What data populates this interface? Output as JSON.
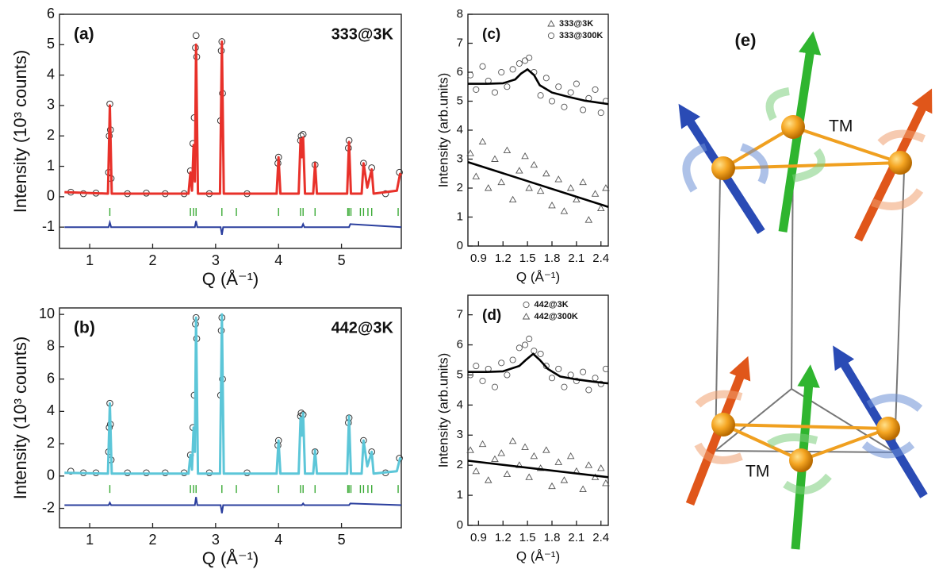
{
  "chart_data": [
    {
      "type": "rietveld",
      "panel_label": "(a)",
      "annotation": "333@3K",
      "x_label": "Q (Å⁻¹)",
      "y_label": "Intensity (10³ counts)",
      "xlim": [
        0.52,
        5.95
      ],
      "ylim": [
        -1.7,
        6
      ],
      "xticks": [
        1,
        2,
        3,
        4,
        5
      ],
      "yticks": [
        -1,
        0,
        1,
        2,
        3,
        4,
        5,
        6
      ],
      "calculated": {
        "color": "#e8312a",
        "x": [
          0.6,
          1.29,
          1.32,
          1.35,
          2.57,
          2.6,
          2.625,
          2.65,
          2.67,
          2.69,
          2.72,
          3.07,
          3.1,
          3.13,
          3.97,
          4.0,
          4.03,
          4.32,
          4.35,
          4.37,
          4.39,
          4.42,
          4.55,
          4.58,
          4.61,
          5.09,
          5.12,
          5.15,
          5.32,
          5.35,
          5.41,
          5.48,
          5.51,
          5.88,
          5.93,
          5.95
        ],
        "values": [
          0.15,
          0.1,
          3.0,
          0.1,
          0.1,
          0.8,
          0.2,
          1.7,
          0.5,
          5.0,
          0.1,
          0.1,
          5.1,
          0.1,
          0.1,
          1.3,
          0.1,
          0.1,
          1.9,
          1.3,
          1.95,
          0.1,
          0.1,
          1.1,
          0.1,
          0.1,
          1.8,
          0.1,
          0.1,
          1.1,
          0.3,
          0.9,
          0.1,
          0.2,
          0.75,
          0.7
        ]
      },
      "observed": {
        "color": "#333333",
        "x": [
          0.7,
          0.9,
          1.1,
          1.3,
          1.31,
          1.32,
          1.33,
          1.34,
          1.6,
          1.9,
          2.2,
          2.5,
          2.6,
          2.64,
          2.66,
          2.68,
          2.69,
          2.7,
          2.9,
          3.08,
          3.09,
          3.1,
          3.11,
          3.5,
          3.99,
          4.0,
          4.35,
          4.36,
          4.39,
          4.58,
          5.11,
          5.12,
          5.35,
          5.48,
          5.7,
          5.92
        ],
        "values": [
          0.15,
          0.1,
          0.12,
          0.8,
          2.0,
          3.05,
          2.2,
          0.6,
          0.1,
          0.12,
          0.1,
          0.1,
          0.85,
          1.75,
          2.6,
          4.9,
          5.3,
          4.6,
          0.1,
          2.5,
          4.8,
          5.1,
          3.4,
          0.1,
          1.1,
          1.3,
          1.85,
          2.0,
          2.05,
          1.05,
          1.6,
          1.85,
          1.1,
          0.95,
          0.1,
          0.8
        ]
      },
      "bragg": {
        "color": "#3aaa35",
        "y": -0.5,
        "x": [
          1.32,
          2.6,
          2.65,
          2.69,
          3.1,
          3.33,
          4.0,
          4.35,
          4.39,
          4.58,
          5.1,
          5.12,
          5.15,
          5.3,
          5.35,
          5.42,
          5.48,
          5.9
        ]
      },
      "difference": {
        "color": "#2b3f9e",
        "x": [
          0.6,
          1.3,
          1.32,
          1.34,
          2.67,
          2.69,
          2.71,
          3.08,
          3.1,
          3.12,
          4.37,
          4.39,
          4.41,
          5.12,
          5.14,
          5.95
        ],
        "values": [
          -1,
          -1,
          -0.85,
          -1,
          -1,
          -0.8,
          -1,
          -1,
          -1.25,
          -1,
          -1,
          -0.9,
          -1,
          -1,
          -0.9,
          -1
        ]
      }
    },
    {
      "type": "rietveld",
      "panel_label": "(b)",
      "annotation": "442@3K",
      "x_label": "Q (Å⁻¹)",
      "y_label": "Intensity (10³ counts)",
      "xlim": [
        0.52,
        5.95
      ],
      "ylim": [
        -3.2,
        10.4
      ],
      "xticks": [
        1,
        2,
        3,
        4,
        5
      ],
      "yticks": [
        -2,
        0,
        2,
        4,
        6,
        8,
        10
      ],
      "calculated": {
        "color": "#5cc6d8",
        "x": [
          0.6,
          1.29,
          1.32,
          1.35,
          2.57,
          2.6,
          2.625,
          2.65,
          2.67,
          2.69,
          2.72,
          3.07,
          3.1,
          3.13,
          3.97,
          4.0,
          4.03,
          4.32,
          4.35,
          4.37,
          4.39,
          4.42,
          4.55,
          4.58,
          4.61,
          5.09,
          5.12,
          5.15,
          5.32,
          5.35,
          5.41,
          5.48,
          5.51,
          5.88,
          5.93,
          5.95
        ],
        "values": [
          0.2,
          0.15,
          4.5,
          0.15,
          0.15,
          1.3,
          0.4,
          3.0,
          1.5,
          9.8,
          0.15,
          0.15,
          10.0,
          0.15,
          0.15,
          2.2,
          0.15,
          0.15,
          3.6,
          2.5,
          3.9,
          0.15,
          0.15,
          1.6,
          0.15,
          0.15,
          3.7,
          0.15,
          0.15,
          2.2,
          0.6,
          1.5,
          0.15,
          0.3,
          1.1,
          1.0
        ]
      },
      "observed": {
        "color": "#333333",
        "x": [
          0.7,
          0.9,
          1.1,
          1.3,
          1.31,
          1.32,
          1.33,
          1.34,
          1.6,
          1.9,
          2.2,
          2.5,
          2.6,
          2.64,
          2.66,
          2.68,
          2.69,
          2.7,
          2.9,
          3.08,
          3.09,
          3.1,
          3.11,
          3.5,
          3.99,
          4.0,
          4.35,
          4.36,
          4.39,
          4.58,
          5.11,
          5.12,
          5.35,
          5.48,
          5.7,
          5.92
        ],
        "values": [
          0.3,
          0.2,
          0.2,
          1.5,
          3.0,
          4.5,
          3.2,
          1.0,
          0.2,
          0.2,
          0.2,
          0.2,
          1.3,
          3.0,
          5.0,
          9.4,
          9.8,
          8.5,
          0.2,
          5.0,
          9.0,
          9.8,
          6.0,
          0.2,
          1.9,
          2.2,
          3.7,
          3.9,
          3.8,
          1.5,
          3.3,
          3.6,
          2.2,
          1.5,
          0.2,
          1.1
        ]
      },
      "bragg": {
        "color": "#3aaa35",
        "y": -0.8,
        "x": [
          1.32,
          2.6,
          2.65,
          2.69,
          3.1,
          3.33,
          4.0,
          4.35,
          4.39,
          4.58,
          5.1,
          5.12,
          5.15,
          5.3,
          5.35,
          5.42,
          5.48,
          5.9
        ]
      },
      "difference": {
        "color": "#2b3f9e",
        "x": [
          0.6,
          1.3,
          1.32,
          1.34,
          2.67,
          2.69,
          2.71,
          3.08,
          3.1,
          3.12,
          4.37,
          4.39,
          4.41,
          5.12,
          5.14,
          5.95
        ],
        "values": [
          -1.8,
          -1.8,
          -1.65,
          -1.8,
          -1.8,
          -1.3,
          -1.8,
          -1.8,
          -2.3,
          -1.8,
          -1.8,
          -1.7,
          -1.8,
          -1.8,
          -1.7,
          -1.8
        ]
      }
    },
    {
      "type": "scatter",
      "panel_label": "(c)",
      "x_label": "Q (Å⁻¹)",
      "y_label": "Intensity (arb.units)",
      "xlim": [
        0.77,
        2.49
      ],
      "ylim": [
        0,
        8
      ],
      "xticks": [
        0.9,
        1.2,
        1.5,
        1.8,
        2.1,
        2.4
      ],
      "yticks": [
        0,
        1,
        2,
        3,
        4,
        5,
        6,
        7,
        8
      ],
      "legend": "upper right",
      "series": [
        {
          "name": "333@3K",
          "marker": "triangle",
          "color": "#555555",
          "x": [
            0.8,
            0.87,
            0.95,
            1.02,
            1.1,
            1.18,
            1.25,
            1.32,
            1.4,
            1.47,
            1.52,
            1.58,
            1.66,
            1.73,
            1.8,
            1.88,
            1.95,
            2.03,
            2.1,
            2.18,
            2.25,
            2.33,
            2.4,
            2.46
          ],
          "values": [
            3.2,
            2.4,
            3.6,
            2.0,
            3.0,
            2.2,
            3.3,
            1.6,
            2.6,
            3.1,
            2.0,
            2.8,
            1.9,
            2.5,
            1.4,
            2.3,
            1.2,
            2.0,
            1.6,
            2.2,
            0.9,
            1.8,
            1.3,
            2.0
          ],
          "fit_color": "#000000",
          "fit_x": [
            0.77,
            2.49
          ],
          "fit_values": [
            2.9,
            1.35
          ]
        },
        {
          "name": "333@300K",
          "marker": "circle",
          "color": "#555555",
          "x": [
            0.8,
            0.87,
            0.95,
            1.02,
            1.1,
            1.18,
            1.25,
            1.32,
            1.4,
            1.47,
            1.52,
            1.58,
            1.66,
            1.73,
            1.8,
            1.88,
            1.95,
            2.03,
            2.1,
            2.18,
            2.25,
            2.33,
            2.4,
            2.46
          ],
          "values": [
            5.9,
            5.4,
            6.2,
            5.7,
            5.3,
            6.0,
            5.5,
            6.1,
            6.3,
            6.4,
            6.5,
            6.0,
            5.2,
            5.8,
            5.0,
            5.5,
            4.8,
            5.3,
            5.6,
            4.7,
            5.1,
            5.4,
            4.6,
            5.0
          ],
          "fit_color": "#000000",
          "fit_x": [
            0.77,
            1.0,
            1.2,
            1.35,
            1.42,
            1.5,
            1.58,
            1.65,
            1.8,
            2.0,
            2.2,
            2.49
          ],
          "fit_values": [
            5.6,
            5.6,
            5.62,
            5.75,
            5.95,
            6.1,
            5.9,
            5.55,
            5.3,
            5.15,
            5.02,
            4.9
          ]
        }
      ]
    },
    {
      "type": "scatter",
      "panel_label": "(d)",
      "x_label": "Q (Å⁻¹)",
      "y_label": "Intensity (arb.units)",
      "xlim": [
        0.77,
        2.49
      ],
      "ylim": [
        0,
        7.65
      ],
      "xticks": [
        0.9,
        1.2,
        1.5,
        1.8,
        2.1,
        2.4
      ],
      "yticks": [
        0,
        1,
        2,
        3,
        4,
        5,
        6,
        7
      ],
      "legend": "upper center",
      "series": [
        {
          "name": "442@3K",
          "marker": "circle",
          "color": "#555555",
          "x": [
            0.8,
            0.87,
            0.95,
            1.02,
            1.1,
            1.18,
            1.25,
            1.32,
            1.4,
            1.47,
            1.52,
            1.58,
            1.66,
            1.73,
            1.8,
            1.88,
            1.95,
            2.03,
            2.1,
            2.18,
            2.25,
            2.33,
            2.4,
            2.46
          ],
          "values": [
            5.0,
            5.3,
            4.8,
            5.2,
            4.6,
            5.4,
            5.0,
            5.5,
            5.9,
            6.0,
            6.2,
            5.8,
            5.7,
            5.3,
            4.9,
            5.2,
            4.6,
            5.0,
            4.8,
            5.1,
            4.5,
            4.9,
            4.7,
            5.2
          ],
          "fit_color": "#000000",
          "fit_x": [
            0.77,
            1.0,
            1.2,
            1.4,
            1.48,
            1.57,
            1.65,
            1.75,
            1.9,
            2.1,
            2.3,
            2.49
          ],
          "fit_values": [
            5.1,
            5.1,
            5.12,
            5.3,
            5.5,
            5.7,
            5.5,
            5.2,
            4.95,
            4.85,
            4.78,
            4.72
          ]
        },
        {
          "name": "442@300K",
          "marker": "triangle",
          "color": "#555555",
          "x": [
            0.8,
            0.87,
            0.95,
            1.02,
            1.1,
            1.18,
            1.25,
            1.32,
            1.4,
            1.47,
            1.52,
            1.58,
            1.66,
            1.73,
            1.8,
            1.88,
            1.95,
            2.03,
            2.1,
            2.18,
            2.25,
            2.33,
            2.4,
            2.46
          ],
          "values": [
            2.5,
            1.8,
            2.7,
            1.5,
            2.2,
            2.4,
            1.7,
            2.8,
            2.0,
            2.6,
            1.6,
            2.3,
            1.9,
            2.5,
            1.3,
            2.1,
            1.5,
            2.3,
            1.8,
            1.2,
            2.0,
            1.6,
            1.9,
            1.4
          ],
          "fit_color": "#000000",
          "fit_x": [
            0.77,
            2.49
          ],
          "fit_values": [
            2.15,
            1.6
          ]
        }
      ]
    }
  ],
  "diagram": {
    "panel_label": "(e)",
    "site_labels": [
      "TM",
      "TM"
    ]
  }
}
